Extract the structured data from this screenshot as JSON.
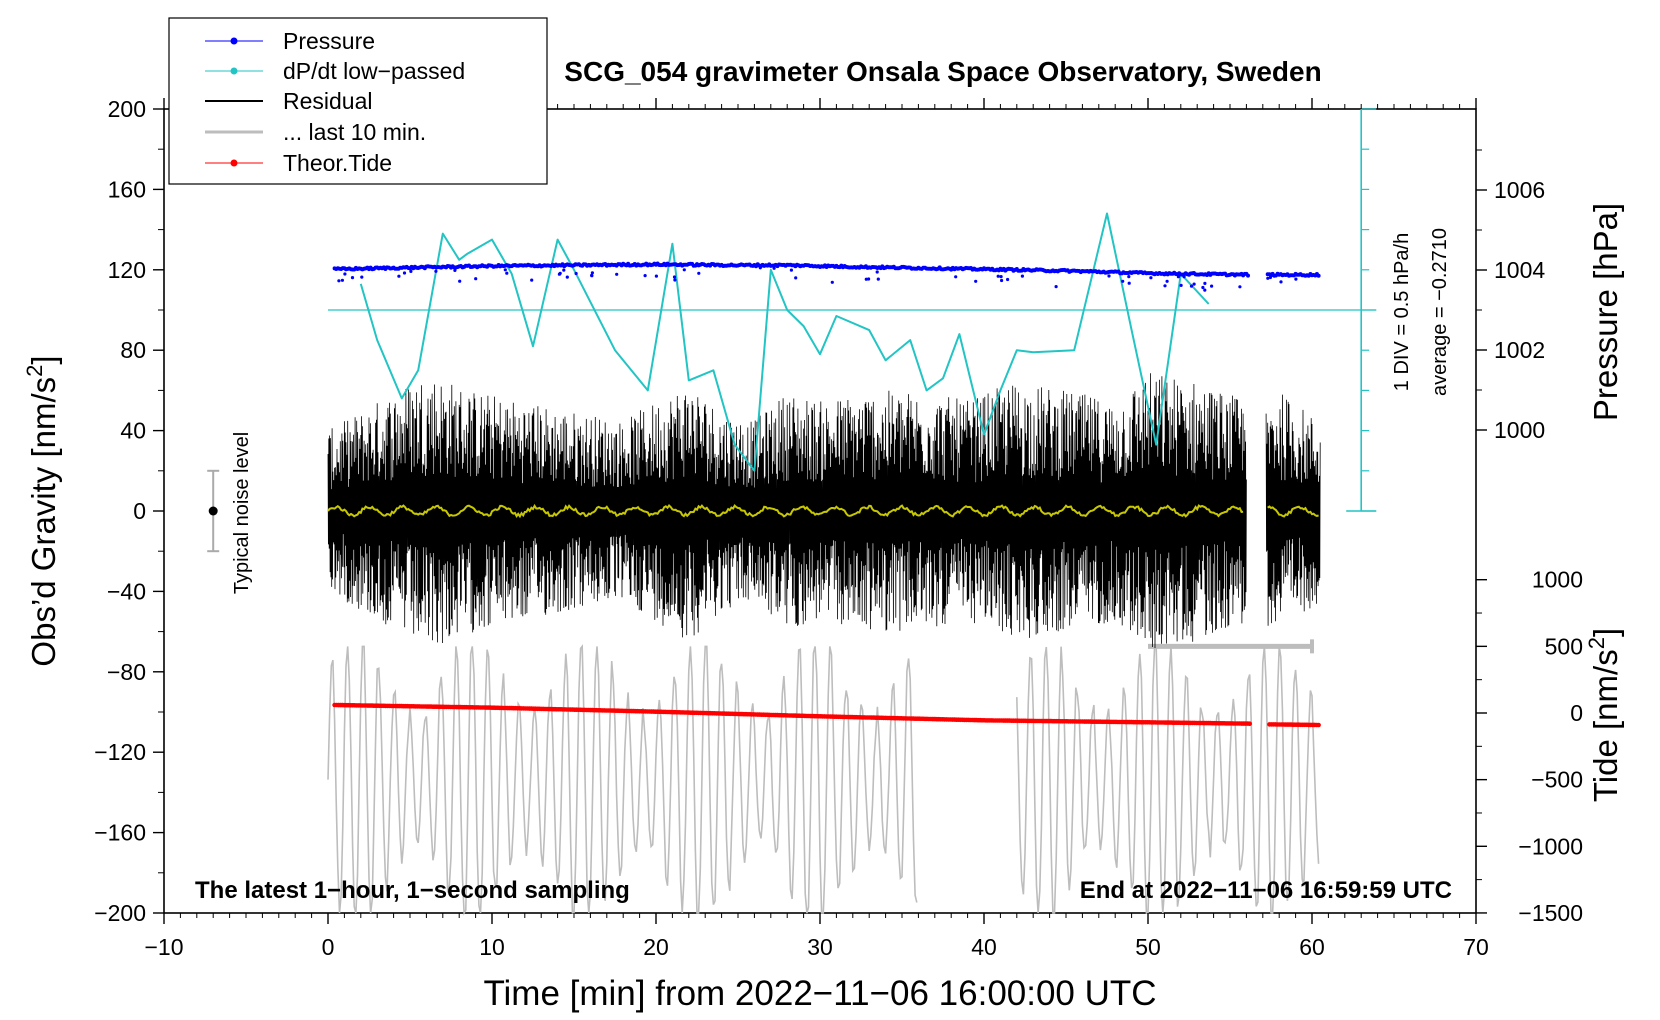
{
  "chart_data": {
    "type": "line",
    "title": "SCG_054 gravimeter Onsala Space Observatory, Sweden",
    "xlabel": "Time [min] from 2022−11−06 16:00:00 UTC",
    "ylabel_left_prefix": "Obs’d Gravity [nm/s",
    "ylabel_left_sup": "2",
    "ylabel_left_suffix": "]",
    "ylabel_right_pressure": "Pressure [hPa]",
    "ylabel_right_tide_prefix": "Tide [nm/s",
    "ylabel_right_tide_sup": "2",
    "ylabel_right_tide_suffix": "]",
    "xlim": [
      -10,
      70
    ],
    "ylim": [
      -200,
      200
    ],
    "pressure_lim": [
      998,
      1008
    ],
    "tide_lim": [
      -1500,
      1500
    ],
    "x_ticks": [
      "−10",
      "0",
      "10",
      "20",
      "30",
      "40",
      "50",
      "60",
      "70"
    ],
    "x_tick_values": [
      -10,
      0,
      10,
      20,
      30,
      40,
      50,
      60,
      70
    ],
    "y_ticks": [
      "200",
      "160",
      "120",
      "80",
      "40",
      "0",
      "−40",
      "−80",
      "−120",
      "−160",
      "−200"
    ],
    "y_tick_values": [
      200,
      160,
      120,
      80,
      40,
      0,
      -40,
      -80,
      -120,
      -160,
      -200
    ],
    "pressure_ticks": [
      "1006",
      "1004",
      "1002",
      "1000"
    ],
    "pressure_tick_values": [
      1006,
      1004,
      1002,
      1000
    ],
    "tide_ticks": [
      "1000",
      "500",
      "0",
      "−500",
      "−1000",
      "−1500"
    ],
    "tide_tick_values": [
      1000,
      500,
      0,
      -500,
      -1000,
      -1500
    ],
    "legend": [
      {
        "label": "Pressure",
        "color": "#0000ff",
        "style": "line-dot"
      },
      {
        "label": "dP/dt low−passed",
        "color": "#22c4c4",
        "style": "line-dot"
      },
      {
        "label": "Residual",
        "color": "#000000",
        "style": "line"
      },
      {
        "label": "... last 10 min.",
        "color": "#bdbdbd",
        "style": "line"
      },
      {
        "label": "Theor.Tide",
        "color": "#ff0000",
        "style": "line-dot"
      }
    ],
    "legend_position": "top-left",
    "annotations": {
      "bottom_left": "The latest 1−hour, 1−second sampling",
      "bottom_right": "End at 2022−11−06 16:59:59 UTC",
      "noise_level": "Typical noise level",
      "dpdt_div": "1 DIV = 0.5 hPa/h",
      "dpdt_average": "average = −0.2710"
    },
    "noise_level": {
      "x": -7,
      "center": 0,
      "half_range": 20
    },
    "dpdt_scale": {
      "x": 63,
      "reference_gravity": 100,
      "divisions": 10,
      "hpa_per_div": 0.5,
      "average": -0.271
    },
    "pressure_series": {
      "name": "Pressure",
      "x": [
        0.4,
        5,
        10,
        15,
        20,
        25,
        28,
        32,
        36,
        40,
        45,
        50,
        53,
        56.2,
        57.3,
        60.5
      ],
      "y": [
        1004.02,
        1004.06,
        1004.1,
        1004.12,
        1004.14,
        1004.12,
        1004.12,
        1004.08,
        1004.05,
        1004.02,
        1003.98,
        1003.92,
        1003.9,
        1003.88,
        1003.88,
        1003.88
      ],
      "gap": [
        56.2,
        57.3
      ]
    },
    "dpdt_series": {
      "name": "dP/dt low−passed",
      "x": [
        2,
        3,
        4.5,
        5.5,
        7,
        8,
        8.5,
        10,
        11.2,
        12.5,
        14,
        15,
        17.5,
        19.5,
        21,
        22,
        23.5,
        24.8,
        26,
        27,
        28,
        29,
        30,
        31,
        33,
        34,
        35.5,
        36.5,
        37.5,
        38.5,
        40,
        41,
        42,
        43,
        45.5,
        47.5,
        49,
        50.5,
        52,
        53.7
      ],
      "y": [
        113,
        85,
        56,
        70,
        138,
        125,
        128,
        135,
        118,
        82,
        135,
        120,
        80,
        60,
        133,
        65,
        70,
        33,
        20,
        120,
        100,
        92,
        78,
        97,
        90,
        75,
        85,
        60,
        66,
        88,
        38,
        60,
        80,
        79,
        80,
        148,
        90,
        33,
        118,
        103
      ]
    },
    "residual_series": {
      "name": "Residual",
      "x_range": [
        0,
        60.5
      ],
      "gap": [
        56,
        57.2
      ],
      "envelope": [
        [
          0,
          40
        ],
        [
          3,
          55
        ],
        [
          6,
          70
        ],
        [
          9,
          60
        ],
        [
          12,
          55
        ],
        [
          15,
          50
        ],
        [
          18,
          45
        ],
        [
          22,
          65
        ],
        [
          24,
          50
        ],
        [
          26,
          45
        ],
        [
          28,
          60
        ],
        [
          30,
          55
        ],
        [
          33,
          60
        ],
        [
          36,
          60
        ],
        [
          39,
          55
        ],
        [
          42,
          65
        ],
        [
          45,
          60
        ],
        [
          48,
          55
        ],
        [
          50,
          70
        ],
        [
          53,
          65
        ],
        [
          56,
          55
        ],
        [
          58,
          60
        ],
        [
          60.5,
          45
        ]
      ]
    },
    "lowpass_series": {
      "name": "Residual low-pass",
      "color": "#c8c800",
      "x_range": [
        0,
        60.5
      ],
      "level": 0
    },
    "last10_series": {
      "name": "... last 10 min.",
      "segments": [
        [
          0,
          36
        ],
        [
          42,
          60.5
        ]
      ],
      "min": -1500,
      "max": 500,
      "mean": -500,
      "bar": {
        "x1": 50,
        "x2": 60,
        "value": 500
      }
    },
    "tide_series": {
      "name": "Theor.Tide",
      "x": [
        0.4,
        10,
        20,
        30,
        40,
        50,
        56.2,
        57.3,
        60.5
      ],
      "y": [
        60,
        40,
        10,
        -25,
        -55,
        -70,
        -80,
        -85,
        -90
      ],
      "gap": [
        56.2,
        57.3
      ]
    }
  }
}
